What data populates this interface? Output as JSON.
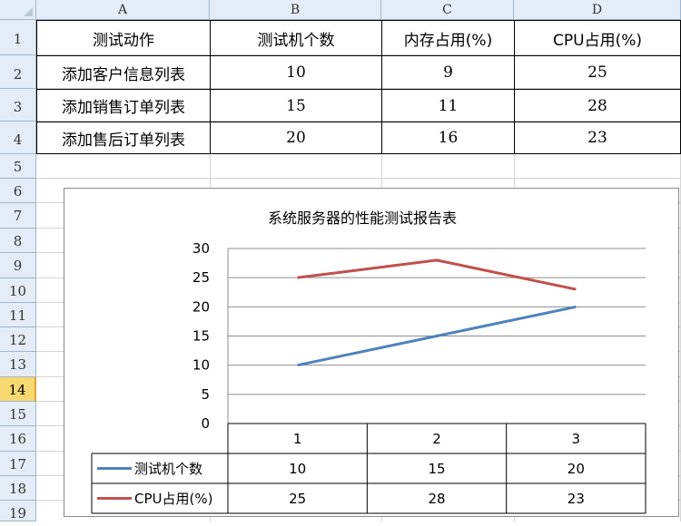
{
  "sheet": {
    "columns": [
      "A",
      "B",
      "C",
      "D"
    ],
    "rows": [
      "1",
      "2",
      "3",
      "4",
      "5",
      "6",
      "7",
      "8",
      "9",
      "10",
      "11",
      "12",
      "13",
      "14",
      "15",
      "16",
      "17",
      "18",
      "19"
    ],
    "active_row": "14",
    "table": {
      "header": [
        "测试动作",
        "测试机个数",
        "内存占用(%)",
        "CPU占用(%)"
      ],
      "rows": [
        [
          "添加客户信息列表",
          "10",
          "9",
          "25"
        ],
        [
          "添加销售订单列表",
          "15",
          "11",
          "28"
        ],
        [
          "添加售后订单列表",
          "20",
          "16",
          "23"
        ]
      ]
    }
  },
  "colors": {
    "series_1": "#4f81bd",
    "series_2": "#c0504d",
    "header_bg": "#e4ecf7",
    "active_row_bg": "#f8d871"
  },
  "chart_data": {
    "type": "line",
    "title": "系统服务器的性能测试报告表",
    "categories": [
      "1",
      "2",
      "3"
    ],
    "series": [
      {
        "name": "测试机个数",
        "values": [
          10,
          15,
          20
        ]
      },
      {
        "name": "CPU占用(%)",
        "values": [
          25,
          28,
          23
        ]
      }
    ],
    "ylim": [
      0,
      30
    ],
    "yticks": [
      0,
      5,
      10,
      15,
      20,
      25,
      30
    ],
    "grid": true,
    "legend": "data-table-below"
  }
}
